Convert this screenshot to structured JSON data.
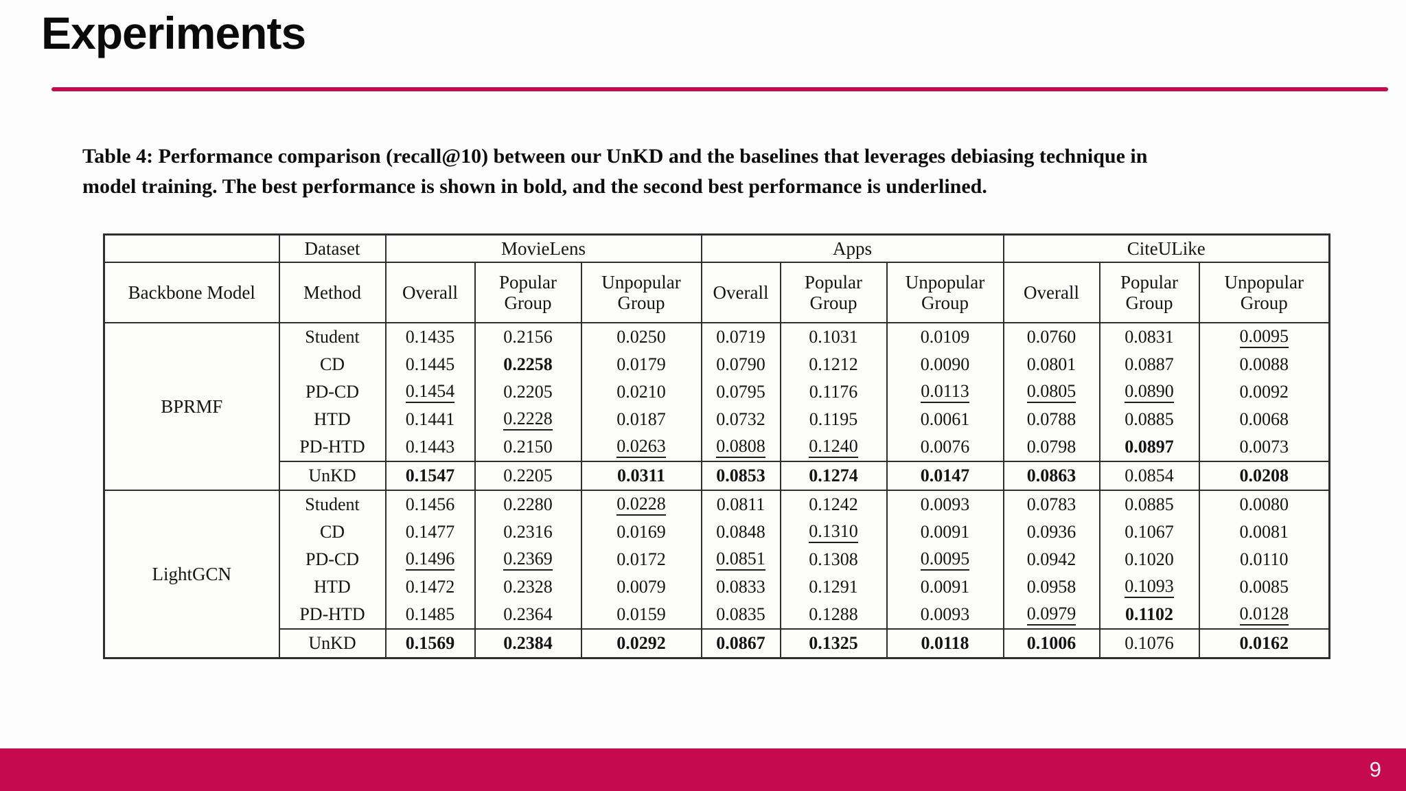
{
  "slide": {
    "title": "Experiments",
    "page_number": "9"
  },
  "colors": {
    "accent": "#C50A50"
  },
  "caption": {
    "line1": "Table 4: Performance comparison (recall@10) between our UnKD and the baselines that leverages debiasing technique in",
    "line2": "model training. The best performance is shown in bold, and the second best performance is underlined."
  },
  "table": {
    "dataset_label": "Dataset",
    "backbone_label": "Backbone Model",
    "method_label": "Method",
    "datasets": [
      "MovieLens",
      "Apps",
      "CiteULike"
    ],
    "subheaders": [
      "Overall",
      "Popular Group",
      "Unpopular Group"
    ],
    "mark_legend": {
      "b": "bold = best",
      "u": "underline = second best"
    },
    "groups": [
      {
        "backbone": "BPRMF",
        "rows": [
          {
            "method": "Student",
            "cells": [
              [
                "0.1435",
                ""
              ],
              [
                "0.2156",
                ""
              ],
              [
                "0.0250",
                ""
              ],
              [
                "0.0719",
                ""
              ],
              [
                "0.1031",
                ""
              ],
              [
                "0.0109",
                ""
              ],
              [
                "0.0760",
                ""
              ],
              [
                "0.0831",
                ""
              ],
              [
                "0.0095",
                "u"
              ]
            ]
          },
          {
            "method": "CD",
            "cells": [
              [
                "0.1445",
                ""
              ],
              [
                "0.2258",
                "b"
              ],
              [
                "0.0179",
                ""
              ],
              [
                "0.0790",
                ""
              ],
              [
                "0.1212",
                ""
              ],
              [
                "0.0090",
                ""
              ],
              [
                "0.0801",
                ""
              ],
              [
                "0.0887",
                ""
              ],
              [
                "0.0088",
                ""
              ]
            ]
          },
          {
            "method": "PD-CD",
            "cells": [
              [
                "0.1454",
                "u"
              ],
              [
                "0.2205",
                ""
              ],
              [
                "0.0210",
                ""
              ],
              [
                "0.0795",
                ""
              ],
              [
                "0.1176",
                ""
              ],
              [
                "0.0113",
                "u"
              ],
              [
                "0.0805",
                "u"
              ],
              [
                "0.0890",
                "u"
              ],
              [
                "0.0092",
                ""
              ]
            ]
          },
          {
            "method": "HTD",
            "cells": [
              [
                "0.1441",
                ""
              ],
              [
                "0.2228",
                "u"
              ],
              [
                "0.0187",
                ""
              ],
              [
                "0.0732",
                ""
              ],
              [
                "0.1195",
                ""
              ],
              [
                "0.0061",
                ""
              ],
              [
                "0.0788",
                ""
              ],
              [
                "0.0885",
                ""
              ],
              [
                "0.0068",
                ""
              ]
            ]
          },
          {
            "method": "PD-HTD",
            "cells": [
              [
                "0.1443",
                ""
              ],
              [
                "0.2150",
                ""
              ],
              [
                "0.0263",
                "u"
              ],
              [
                "0.0808",
                "u"
              ],
              [
                "0.1240",
                "u"
              ],
              [
                "0.0076",
                ""
              ],
              [
                "0.0798",
                ""
              ],
              [
                "0.0897",
                "b"
              ],
              [
                "0.0073",
                ""
              ]
            ]
          },
          {
            "method": "UnKD",
            "cells": [
              [
                "0.1547",
                "b"
              ],
              [
                "0.2205",
                ""
              ],
              [
                "0.0311",
                "b"
              ],
              [
                "0.0853",
                "b"
              ],
              [
                "0.1274",
                "b"
              ],
              [
                "0.0147",
                "b"
              ],
              [
                "0.0863",
                "b"
              ],
              [
                "0.0854",
                ""
              ],
              [
                "0.0208",
                "b"
              ]
            ]
          }
        ]
      },
      {
        "backbone": "LightGCN",
        "rows": [
          {
            "method": "Student",
            "cells": [
              [
                "0.1456",
                ""
              ],
              [
                "0.2280",
                ""
              ],
              [
                "0.0228",
                "u"
              ],
              [
                "0.0811",
                ""
              ],
              [
                "0.1242",
                ""
              ],
              [
                "0.0093",
                ""
              ],
              [
                "0.0783",
                ""
              ],
              [
                "0.0885",
                ""
              ],
              [
                "0.0080",
                ""
              ]
            ]
          },
          {
            "method": "CD",
            "cells": [
              [
                "0.1477",
                ""
              ],
              [
                "0.2316",
                ""
              ],
              [
                "0.0169",
                ""
              ],
              [
                "0.0848",
                ""
              ],
              [
                "0.1310",
                "u"
              ],
              [
                "0.0091",
                ""
              ],
              [
                "0.0936",
                ""
              ],
              [
                "0.1067",
                ""
              ],
              [
                "0.0081",
                ""
              ]
            ]
          },
          {
            "method": "PD-CD",
            "cells": [
              [
                "0.1496",
                "u"
              ],
              [
                "0.2369",
                "u"
              ],
              [
                "0.0172",
                ""
              ],
              [
                "0.0851",
                "u"
              ],
              [
                "0.1308",
                ""
              ],
              [
                "0.0095",
                "u"
              ],
              [
                "0.0942",
                ""
              ],
              [
                "0.1020",
                ""
              ],
              [
                "0.0110",
                ""
              ]
            ]
          },
          {
            "method": "HTD",
            "cells": [
              [
                "0.1472",
                ""
              ],
              [
                "0.2328",
                ""
              ],
              [
                "0.0079",
                ""
              ],
              [
                "0.0833",
                ""
              ],
              [
                "0.1291",
                ""
              ],
              [
                "0.0091",
                ""
              ],
              [
                "0.0958",
                ""
              ],
              [
                "0.1093",
                "u"
              ],
              [
                "0.0085",
                ""
              ]
            ]
          },
          {
            "method": "PD-HTD",
            "cells": [
              [
                "0.1485",
                ""
              ],
              [
                "0.2364",
                ""
              ],
              [
                "0.0159",
                ""
              ],
              [
                "0.0835",
                ""
              ],
              [
                "0.1288",
                ""
              ],
              [
                "0.0093",
                ""
              ],
              [
                "0.0979",
                "u"
              ],
              [
                "0.1102",
                "b"
              ],
              [
                "0.0128",
                "u"
              ]
            ]
          },
          {
            "method": "UnKD",
            "cells": [
              [
                "0.1569",
                "b"
              ],
              [
                "0.2384",
                "b"
              ],
              [
                "0.0292",
                "b"
              ],
              [
                "0.0867",
                "b"
              ],
              [
                "0.1325",
                "b"
              ],
              [
                "0.0118",
                "b"
              ],
              [
                "0.1006",
                "b"
              ],
              [
                "0.1076",
                ""
              ],
              [
                "0.0162",
                "b"
              ]
            ]
          }
        ]
      }
    ]
  }
}
